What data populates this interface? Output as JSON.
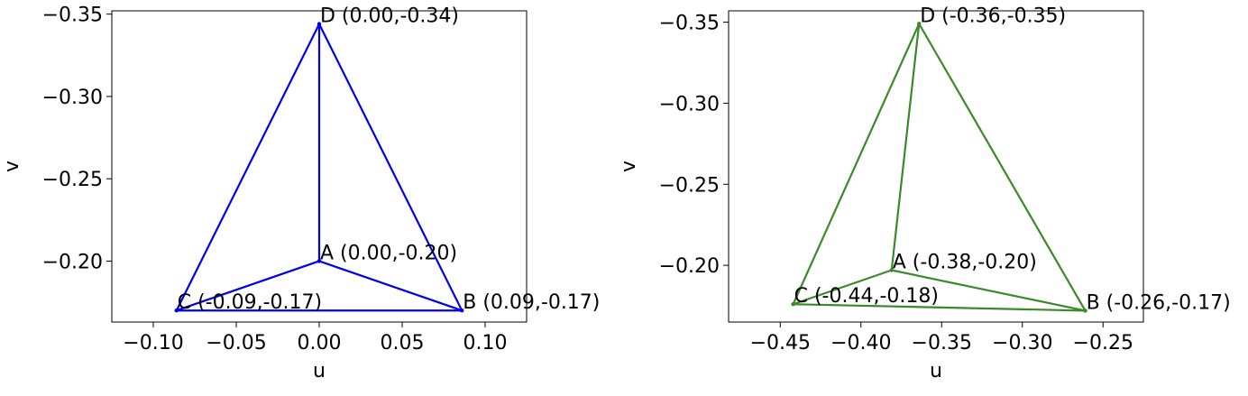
{
  "chart_data": [
    {
      "type": "line",
      "xlabel": "u",
      "ylabel": "v",
      "xlim": [
        -0.125,
        0.125
      ],
      "ylim": [
        -0.352,
        -0.163
      ],
      "y_inverted": true,
      "xticks": [
        -0.1,
        -0.05,
        0.0,
        0.05,
        0.1
      ],
      "xtick_labels": [
        "−0.10",
        "−0.05",
        "0.00",
        "0.05",
        "0.10"
      ],
      "yticks": [
        -0.35,
        -0.3,
        -0.25,
        -0.2
      ],
      "ytick_labels": [
        "−0.35",
        "−0.30",
        "−0.25",
        "−0.20"
      ],
      "grid": false,
      "color": "#0000ee",
      "points": [
        {
          "id": "A",
          "x": 0.0,
          "y": -0.2,
          "label": "A (0.00,-0.20)"
        },
        {
          "id": "B",
          "x": 0.086,
          "y": -0.17,
          "label": "B (0.09,-0.17)"
        },
        {
          "id": "C",
          "x": -0.086,
          "y": -0.17,
          "label": "C (-0.09,-0.17)"
        },
        {
          "id": "D",
          "x": 0.0,
          "y": -0.344,
          "label": "D (0.00,-0.34)"
        }
      ],
      "edges": [
        [
          "A",
          "B"
        ],
        [
          "A",
          "C"
        ],
        [
          "A",
          "D"
        ],
        [
          "B",
          "C"
        ],
        [
          "B",
          "D"
        ],
        [
          "C",
          "D"
        ]
      ]
    },
    {
      "type": "line",
      "xlabel": "u",
      "ylabel": "v",
      "xlim": [
        -0.482,
        -0.225
      ],
      "ylim": [
        -0.357,
        -0.165
      ],
      "y_inverted": true,
      "xticks": [
        -0.45,
        -0.4,
        -0.35,
        -0.3,
        -0.25
      ],
      "xtick_labels": [
        "−0.45",
        "−0.40",
        "−0.35",
        "−0.30",
        "−0.25"
      ],
      "yticks": [
        -0.35,
        -0.3,
        -0.25,
        -0.2
      ],
      "ytick_labels": [
        "−0.35",
        "−0.30",
        "−0.25",
        "−0.20"
      ],
      "grid": false,
      "color": "#3a8a2a",
      "points": [
        {
          "id": "A",
          "x": -0.381,
          "y": -0.197,
          "label": "A (-0.38,-0.20)"
        },
        {
          "id": "B",
          "x": -0.261,
          "y": -0.172,
          "label": "B (-0.26,-0.17)"
        },
        {
          "id": "C",
          "x": -0.442,
          "y": -0.176,
          "label": "C (-0.44,-0.18)"
        },
        {
          "id": "D",
          "x": -0.364,
          "y": -0.349,
          "label": "D (-0.36,-0.35)"
        }
      ],
      "edges": [
        [
          "A",
          "B"
        ],
        [
          "A",
          "C"
        ],
        [
          "A",
          "D"
        ],
        [
          "B",
          "C"
        ],
        [
          "B",
          "D"
        ],
        [
          "C",
          "D"
        ]
      ]
    }
  ]
}
